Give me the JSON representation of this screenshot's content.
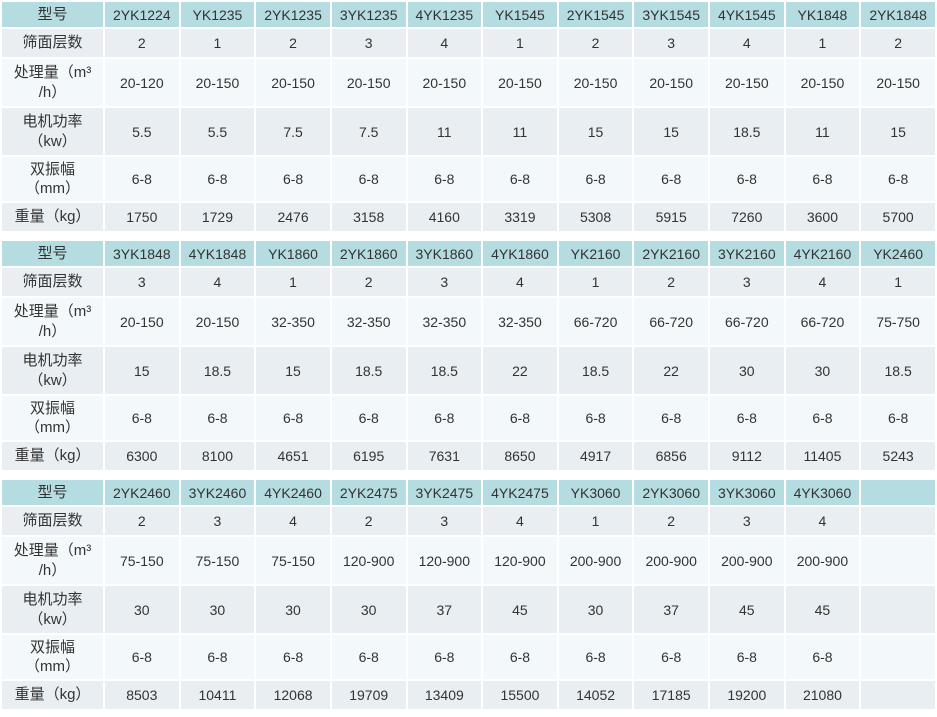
{
  "colors": {
    "header_bg": "#b5dce1",
    "row_dark_bg": "#e8eef1",
    "row_light_bg": "#f3f8fa",
    "cell_border": "#ffffff",
    "text": "#333333",
    "page_bg": "#ffffff"
  },
  "row_labels": {
    "model": "型号",
    "layers": "筛面层数",
    "capacity": "处理量（m³\n/h）",
    "power": "电机功率\n（kw）",
    "amplitude": "双振幅\n（mm）",
    "weight": "重量（kg）"
  },
  "tables": [
    {
      "models": [
        "2YK1224",
        "YK1235",
        "2YK1235",
        "3YK1235",
        "4YK1235",
        "YK1545",
        "2YK1545",
        "3YK1545",
        "4YK1545",
        "YK1848",
        "2YK1848"
      ],
      "layers": [
        "2",
        "1",
        "2",
        "3",
        "4",
        "1",
        "2",
        "3",
        "4",
        "1",
        "2"
      ],
      "capacity": [
        "20-120",
        "20-150",
        "20-150",
        "20-150",
        "20-150",
        "20-150",
        "20-150",
        "20-150",
        "20-150",
        "20-150",
        "20-150"
      ],
      "power": [
        "5.5",
        "5.5",
        "7.5",
        "7.5",
        "11",
        "11",
        "15",
        "15",
        "18.5",
        "11",
        "15"
      ],
      "amplitude": [
        "6-8",
        "6-8",
        "6-8",
        "6-8",
        "6-8",
        "6-8",
        "6-8",
        "6-8",
        "6-8",
        "6-8",
        "6-8"
      ],
      "weight": [
        "1750",
        "1729",
        "2476",
        "3158",
        "4160",
        "3319",
        "5308",
        "5915",
        "7260",
        "3600",
        "5700"
      ]
    },
    {
      "models": [
        "3YK1848",
        "4YK1848",
        "YK1860",
        "2YK1860",
        "3YK1860",
        "4YK1860",
        "YK2160",
        "2YK2160",
        "3YK2160",
        "4YK2160",
        "YK2460"
      ],
      "layers": [
        "3",
        "4",
        "1",
        "2",
        "3",
        "4",
        "1",
        "2",
        "3",
        "4",
        "1"
      ],
      "capacity": [
        "20-150",
        "20-150",
        "32-350",
        "32-350",
        "32-350",
        "32-350",
        "66-720",
        "66-720",
        "66-720",
        "66-720",
        "75-750"
      ],
      "power": [
        "15",
        "18.5",
        "15",
        "18.5",
        "18.5",
        "22",
        "18.5",
        "22",
        "30",
        "30",
        "18.5"
      ],
      "amplitude": [
        "6-8",
        "6-8",
        "6-8",
        "6-8",
        "6-8",
        "6-8",
        "6-8",
        "6-8",
        "6-8",
        "6-8",
        "6-8"
      ],
      "weight": [
        "6300",
        "8100",
        "4651",
        "6195",
        "7631",
        "8650",
        "4917",
        "6856",
        "9112",
        "11405",
        "5243"
      ]
    },
    {
      "models": [
        "2YK2460",
        "3YK2460",
        "4YK2460",
        "2YK2475",
        "3YK2475",
        "4YK2475",
        "YK3060",
        "2YK3060",
        "3YK3060",
        "4YK3060",
        ""
      ],
      "layers": [
        "2",
        "3",
        "4",
        "2",
        "3",
        "4",
        "1",
        "2",
        "3",
        "4",
        ""
      ],
      "capacity": [
        "75-150",
        "75-150",
        "75-150",
        "120-900",
        "120-900",
        "120-900",
        "200-900",
        "200-900",
        "200-900",
        "200-900",
        ""
      ],
      "power": [
        "30",
        "30",
        "30",
        "30",
        "37",
        "45",
        "30",
        "37",
        "45",
        "45",
        ""
      ],
      "amplitude": [
        "6-8",
        "6-8",
        "6-8",
        "6-8",
        "6-8",
        "6-8",
        "6-8",
        "6-8",
        "6-8",
        "6-8",
        ""
      ],
      "weight": [
        "8503",
        "10411",
        "12068",
        "19709",
        "13409",
        "15500",
        "14052",
        "17185",
        "19200",
        "21080",
        ""
      ]
    }
  ],
  "layout": {
    "label_col_width": 101,
    "data_col_count": 11
  }
}
